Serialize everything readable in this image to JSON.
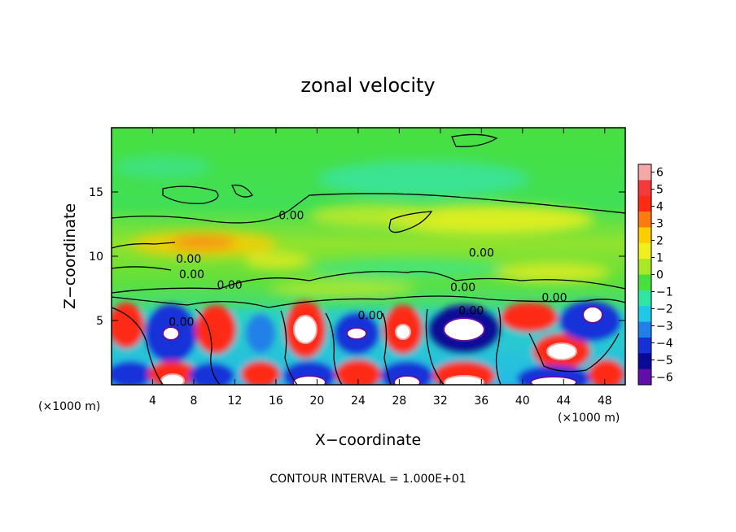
{
  "chart_data": {
    "type": "heatmap",
    "title": "zonal velocity",
    "xlabel": "X−coordinate",
    "ylabel": "Z−coordinate",
    "x_unit_left": "(×1000 m)",
    "x_unit_right": "(×1000 m)",
    "footer": "CONTOUR INTERVAL = 1.000E+01",
    "xlim": [
      0,
      50
    ],
    "ylim": [
      0,
      20
    ],
    "x_ticks": [
      4,
      8,
      12,
      16,
      20,
      24,
      28,
      32,
      36,
      40,
      44,
      48
    ],
    "y_ticks": [
      5,
      10,
      15
    ],
    "colorbar": {
      "ticks": [
        6,
        5,
        4,
        3,
        2,
        1,
        0,
        -1,
        -2,
        -3,
        -4,
        -5,
        -6
      ],
      "tick_labels": [
        "6",
        "5",
        "4",
        "3",
        "2",
        "1",
        "0",
        "−1",
        "−2",
        "−3",
        "−4",
        "−5",
        "−6"
      ],
      "colors": [
        "#f4a8a8",
        "#f23a3a",
        "#ff2a14",
        "#ff7a10",
        "#ffcc00",
        "#f0f020",
        "#a8e828",
        "#48e040",
        "#2ee6a0",
        "#20c8e8",
        "#2080e8",
        "#1830d8",
        "#0a0a98",
        "#6010a8"
      ]
    },
    "contour_labels": [
      {
        "x": 36.0,
        "z": 10.3,
        "text": "0.00"
      },
      {
        "x": 17.5,
        "z": 13.2,
        "text": "0.00"
      },
      {
        "x": 7.5,
        "z": 9.8,
        "text": "0.00"
      },
      {
        "x": 7.8,
        "z": 8.6,
        "text": "0.00"
      },
      {
        "x": 11.5,
        "z": 7.8,
        "text": "0.00"
      },
      {
        "x": 34.2,
        "z": 7.6,
        "text": "0.00"
      },
      {
        "x": 43.1,
        "z": 6.8,
        "text": "0.00"
      },
      {
        "x": 6.8,
        "z": 4.9,
        "text": "0.00"
      },
      {
        "x": 25.2,
        "z": 5.4,
        "text": "0.00"
      },
      {
        "x": 35.0,
        "z": 5.8,
        "text": "0.00"
      }
    ]
  }
}
